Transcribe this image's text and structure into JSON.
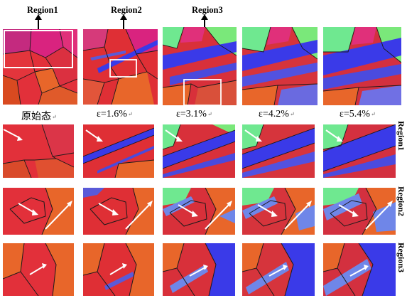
{
  "figure": {
    "region_titles": [
      {
        "id": "region1",
        "label": "Region1"
      },
      {
        "id": "region2",
        "label": "Region2"
      },
      {
        "id": "region3",
        "label": "Region3"
      }
    ],
    "strain_labels": [
      {
        "label": "原始态",
        "mark": "↵"
      },
      {
        "label": "ε=1.6%",
        "mark": "↵"
      },
      {
        "label": "ε=3.1%",
        "mark": "↵"
      },
      {
        "label": "ε=4.2%",
        "mark": "↵"
      },
      {
        "label": "ε=5.4%",
        "mark": "↵"
      }
    ],
    "row_labels": [
      {
        "id": "region1",
        "label": "Region1"
      },
      {
        "id": "region2",
        "label": "Region2"
      },
      {
        "id": "region3",
        "label": "Region3"
      }
    ],
    "colors": {
      "base_red": "#e2303a",
      "orange": "#e8662a",
      "magenta": "#d9237f",
      "blue": "#3f3ff0",
      "light_blue": "#6f86e8",
      "cyan_green": "#6fe890",
      "boundary": "#1a1a1a",
      "highlight_box": "#ffffff"
    }
  }
}
